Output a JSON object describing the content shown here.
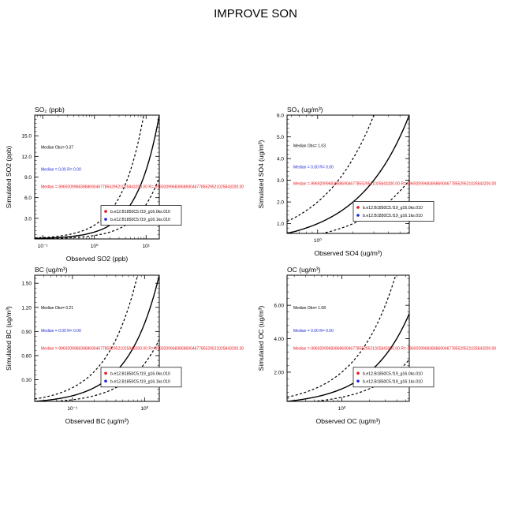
{
  "page": {
    "title": "IMPROVE SON"
  },
  "legend_entries": [
    {
      "label": "b.e12.B1850C5.f19_g16.0ks.010",
      "color": "#e8141b"
    },
    {
      "label": "b.e12.B1850C5.f19_g16.1ks.010",
      "color": "#1f2bd8"
    }
  ],
  "chart_data": [
    {
      "type": "scatter",
      "title": "SO₂ (ppb)",
      "xlabel": "Observed SO2 (ppb)",
      "ylabel": "Simulated SO2 (ppb)",
      "x_scale": "log",
      "xlim": [
        0.07,
        18
      ],
      "x_ticks": [
        0.1,
        1,
        10
      ],
      "x_tick_labels": [
        "10⁻¹",
        "10⁰",
        "10¹"
      ],
      "y_scale": "linear",
      "ylim": [
        0,
        18
      ],
      "y_ticks": [
        3,
        6,
        9,
        12,
        15
      ],
      "y_tick_labels": [
        "3.0",
        "6.0",
        "9.0",
        "12.0",
        "15.0"
      ],
      "reference_lines": [
        {
          "name": "1:1",
          "slope": 1
        },
        {
          "name": "2:1",
          "slope": 2
        },
        {
          "name": "1:2",
          "slope": 0.5
        }
      ],
      "annotations": {
        "median_obs": "Median Obs= 0.37",
        "median_case2": "Median = 0.00 R= 0.00",
        "median_case1": "Median =-99692099683868690467785529521025843200.00 R=-99692099683868690467785529521025843200.00"
      },
      "series": [
        {
          "name": "b.e12.B1850C5.f19_g16.0ks.010",
          "color": "#e8141b",
          "points": []
        },
        {
          "name": "b.e12.B1850C5.f19_g16.1ks.010",
          "color": "#1f2bd8",
          "points": []
        }
      ],
      "grid": false,
      "legend_position": "bottom-right"
    },
    {
      "type": "scatter",
      "title": "SO₄ (ug/m³)",
      "xlabel": "Observed SO4 (ug/m³)",
      "ylabel": "Simulated SO4 (ug/m³)",
      "x_scale": "log",
      "xlim": [
        0.55,
        6.0
      ],
      "x_ticks": [
        1
      ],
      "x_tick_labels": [
        "10⁰"
      ],
      "y_scale": "linear",
      "ylim": [
        0.55,
        6.0
      ],
      "y_ticks": [
        1,
        2,
        3,
        4,
        5,
        6
      ],
      "y_tick_labels": [
        "1.0",
        "2.0",
        "3.0",
        "4.0",
        "5.0",
        "6.0"
      ],
      "reference_lines": [
        {
          "name": "1:1",
          "slope": 1
        },
        {
          "name": "2:1",
          "slope": 2
        },
        {
          "name": "1:2",
          "slope": 0.5
        }
      ],
      "annotations": {
        "median_obs": "Median Obs= 1.03",
        "median_case2": "Median = 0.00 R= 0.00",
        "median_case1": "Median =-99692099683868690467785529521025843200.00 R=-99692099683868690467785529521025843200.00"
      },
      "series": [
        {
          "name": "b.e12.B1850C5.f19_g16.0ks.010",
          "color": "#e8141b",
          "points": []
        },
        {
          "name": "b.e12.B1850C5.f19_g16.1ks.010",
          "color": "#1f2bd8",
          "points": []
        }
      ],
      "grid": false,
      "legend_position": "bottom-right"
    },
    {
      "type": "scatter",
      "title": "BC (ug/m³)",
      "xlabel": "Observed BC (ug/m³)",
      "ylabel": "Simulated BC (ug/m³)",
      "x_scale": "log",
      "xlim": [
        0.03,
        1.6
      ],
      "x_ticks": [
        0.1,
        1
      ],
      "x_tick_labels": [
        "10⁻¹",
        "10⁰"
      ],
      "y_scale": "linear",
      "ylim": [
        0.03,
        1.6
      ],
      "y_ticks": [
        0.3,
        0.6,
        0.9,
        1.2,
        1.5
      ],
      "y_tick_labels": [
        "0.30",
        "0.60",
        "0.90",
        "1.20",
        "1.50"
      ],
      "reference_lines": [
        {
          "name": "1:1",
          "slope": 1
        },
        {
          "name": "2:1",
          "slope": 2
        },
        {
          "name": "1:2",
          "slope": 0.5
        }
      ],
      "annotations": {
        "median_obs": "Median Obs= 0.21",
        "median_case2": "Median = 0.00 R= 0.00",
        "median_case1": "Median =-99692099683868690467785529521025843200.00 R=-99692099683868690467785529521025843200.00"
      },
      "series": [
        {
          "name": "b.e12.B1850C5.f19_g16.0ks.010",
          "color": "#e8141b",
          "points": []
        },
        {
          "name": "b.e12.B1850C5.f19_g16.1ks.010",
          "color": "#1f2bd8",
          "points": []
        }
      ],
      "grid": false,
      "legend_position": "bottom-right"
    },
    {
      "type": "scatter",
      "title": "OC (ug/m³)",
      "xlabel": "Observed OC (ug/m³)",
      "ylabel": "Simulated OC (ug/m³)",
      "x_scale": "log",
      "xlim": [
        0.25,
        5.5
      ],
      "x_ticks": [
        1
      ],
      "x_tick_labels": [
        "10⁰"
      ],
      "y_scale": "linear",
      "ylim": [
        0.25,
        7.8
      ],
      "y_ticks": [
        2,
        4,
        6
      ],
      "y_tick_labels": [
        "2.00",
        "4.00",
        "6.00"
      ],
      "reference_lines": [
        {
          "name": "1:1",
          "slope": 1
        },
        {
          "name": "2:1",
          "slope": 2
        },
        {
          "name": "1:2",
          "slope": 0.5
        }
      ],
      "annotations": {
        "median_obs": "Median Obs= 1.08",
        "median_case2": "Median = 0.00 R= 0.00",
        "median_case1": "Median =-99692099683868690467785529521025843200.00 R=-99692099683868690467785529521025843200.00"
      },
      "series": [
        {
          "name": "b.e12.B1850C5.f19_g16.0ks.010",
          "color": "#e8141b",
          "points": []
        },
        {
          "name": "b.e12.B1850C5.f19_g16.1ks.010",
          "color": "#1f2bd8",
          "points": []
        }
      ],
      "grid": false,
      "legend_position": "bottom-right"
    }
  ]
}
